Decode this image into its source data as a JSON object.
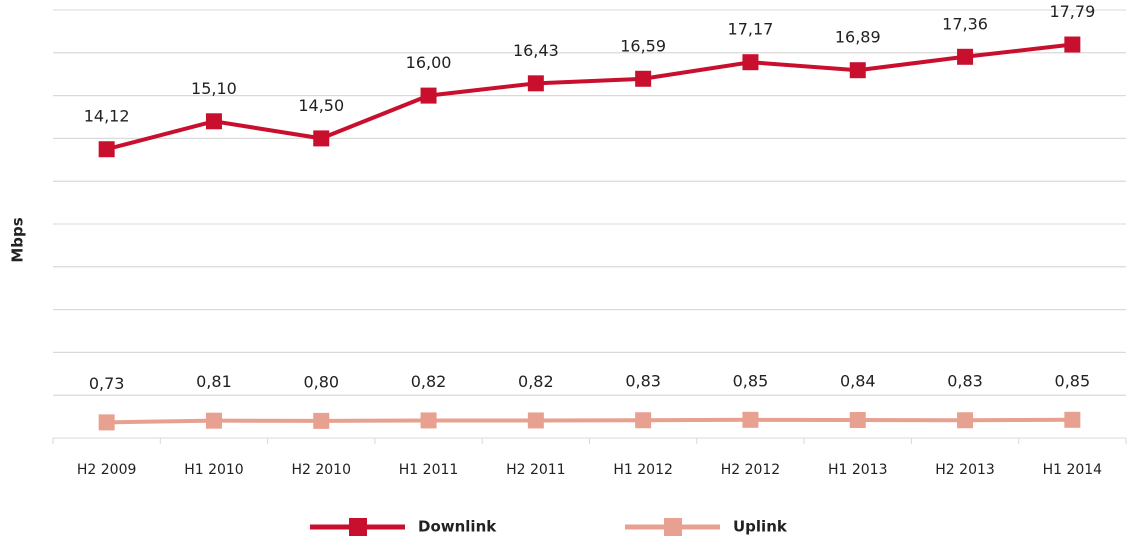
{
  "chart_data": {
    "type": "line",
    "categories": [
      "H2 2009",
      "H1 2010",
      "H2 2010",
      "H1 2011",
      "H2 2011",
      "H1 2012",
      "H2 2012",
      "H1 2013",
      "H2 2013",
      "H1 2014"
    ],
    "series": [
      {
        "name": "Downlink",
        "color": "#c8102e",
        "values": [
          14.12,
          15.1,
          14.5,
          16.0,
          16.43,
          16.59,
          17.17,
          16.89,
          17.36,
          17.79
        ],
        "value_labels": [
          "14,12",
          "15,10",
          "14,50",
          "16,00",
          "16,43",
          "16,59",
          "17,17",
          "16,89",
          "17,36",
          "17,79"
        ]
      },
      {
        "name": "Uplink",
        "color": "#e8a090",
        "axis": "y2",
        "values": [
          0.73,
          0.81,
          0.8,
          0.82,
          0.82,
          0.83,
          0.85,
          0.84,
          0.83,
          0.85
        ],
        "value_labels": [
          "0,73",
          "0,81",
          "0,80",
          "0,82",
          "0,82",
          "0,83",
          "0,85",
          "0,84",
          "0,83",
          "0,85"
        ]
      }
    ],
    "ylabel": "Mbps",
    "ylim": [
      4,
      19
    ],
    "yticks": [
      4,
      5.5,
      7,
      8.5,
      10,
      11.5,
      13,
      14.5,
      16,
      17.5,
      19
    ],
    "y2lim": [
      0,
      20
    ],
    "y2ticks": [
      0,
      2,
      4,
      6,
      8,
      10,
      12,
      14,
      16,
      18,
      20
    ],
    "grid": true,
    "legend": "bottom"
  }
}
